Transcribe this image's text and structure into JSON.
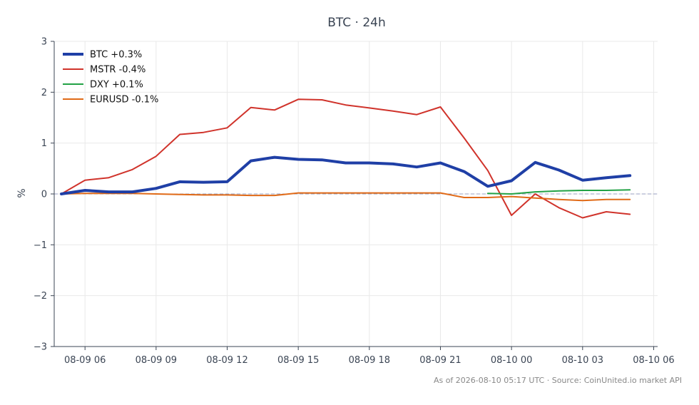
{
  "chart_data": {
    "type": "line",
    "title": "BTC · 24h",
    "xlabel": "",
    "ylabel": "%",
    "ylim": [
      -3,
      3
    ],
    "xlim": [
      "2026-08-09 04:42",
      "2026-08-10 06:10"
    ],
    "x_ticks": [
      {
        "t": "2026-08-09 06:00",
        "label": "08-09 06"
      },
      {
        "t": "2026-08-09 09:00",
        "label": "08-09 09"
      },
      {
        "t": "2026-08-09 12:00",
        "label": "08-09 12"
      },
      {
        "t": "2026-08-09 15:00",
        "label": "08-09 15"
      },
      {
        "t": "2026-08-09 18:00",
        "label": "08-09 18"
      },
      {
        "t": "2026-08-09 21:00",
        "label": "08-09 21"
      },
      {
        "t": "2026-08-10 00:00",
        "label": "08-10 00"
      },
      {
        "t": "2026-08-10 03:00",
        "label": "08-10 03"
      },
      {
        "t": "2026-08-10 06:00",
        "label": "08-10 06"
      }
    ],
    "y_ticks": [
      {
        "v": -3,
        "label": "−3"
      },
      {
        "v": -2,
        "label": "−2"
      },
      {
        "v": -1,
        "label": "−1"
      },
      {
        "v": 0,
        "label": "0"
      },
      {
        "v": 1,
        "label": "1"
      },
      {
        "v": 2,
        "label": "2"
      },
      {
        "v": 3,
        "label": "3"
      }
    ],
    "grid": true,
    "zero_line": true,
    "legend_position": "top-left",
    "series": [
      {
        "name": "BTC +0.3%",
        "color": "#1f3fa6",
        "emphasis": true,
        "points": [
          [
            "2026-08-09 05:00",
            0.0
          ],
          [
            "2026-08-09 06:00",
            0.07
          ],
          [
            "2026-08-09 07:00",
            0.04
          ],
          [
            "2026-08-09 08:00",
            0.04
          ],
          [
            "2026-08-09 09:00",
            0.11
          ],
          [
            "2026-08-09 10:00",
            0.24
          ],
          [
            "2026-08-09 11:00",
            0.23
          ],
          [
            "2026-08-09 12:00",
            0.24
          ],
          [
            "2026-08-09 13:00",
            0.65
          ],
          [
            "2026-08-09 14:00",
            0.72
          ],
          [
            "2026-08-09 15:00",
            0.68
          ],
          [
            "2026-08-09 16:00",
            0.67
          ],
          [
            "2026-08-09 17:00",
            0.61
          ],
          [
            "2026-08-09 18:00",
            0.61
          ],
          [
            "2026-08-09 19:00",
            0.59
          ],
          [
            "2026-08-09 20:00",
            0.53
          ],
          [
            "2026-08-09 21:00",
            0.61
          ],
          [
            "2026-08-09 22:00",
            0.44
          ],
          [
            "2026-08-09 23:00",
            0.15
          ],
          [
            "2026-08-10 00:00",
            0.26
          ],
          [
            "2026-08-10 01:00",
            0.62
          ],
          [
            "2026-08-10 02:00",
            0.47
          ],
          [
            "2026-08-10 03:00",
            0.27
          ],
          [
            "2026-08-10 04:00",
            0.32
          ],
          [
            "2026-08-10 05:00",
            0.36
          ]
        ]
      },
      {
        "name": "MSTR -0.4%",
        "color": "#d0332b",
        "emphasis": false,
        "points": [
          [
            "2026-08-09 05:00",
            0.0
          ],
          [
            "2026-08-09 06:00",
            0.27
          ],
          [
            "2026-08-09 07:00",
            0.32
          ],
          [
            "2026-08-09 08:00",
            0.48
          ],
          [
            "2026-08-09 09:00",
            0.74
          ],
          [
            "2026-08-09 10:00",
            1.17
          ],
          [
            "2026-08-09 11:00",
            1.21
          ],
          [
            "2026-08-09 12:00",
            1.3
          ],
          [
            "2026-08-09 13:00",
            1.7
          ],
          [
            "2026-08-09 14:00",
            1.65
          ],
          [
            "2026-08-09 15:00",
            1.86
          ],
          [
            "2026-08-09 16:00",
            1.85
          ],
          [
            "2026-08-09 17:00",
            1.75
          ],
          [
            "2026-08-09 18:00",
            1.69
          ],
          [
            "2026-08-09 19:00",
            1.63
          ],
          [
            "2026-08-09 20:00",
            1.56
          ],
          [
            "2026-08-09 21:00",
            1.71
          ],
          [
            "2026-08-09 22:00",
            1.1
          ],
          [
            "2026-08-09 23:00",
            0.46
          ],
          [
            "2026-08-10 00:00",
            -0.42
          ],
          [
            "2026-08-10 01:00",
            0.0
          ],
          [
            "2026-08-10 02:00",
            -0.27
          ],
          [
            "2026-08-10 03:00",
            -0.47
          ],
          [
            "2026-08-10 04:00",
            -0.35
          ],
          [
            "2026-08-10 05:00",
            -0.4
          ]
        ]
      },
      {
        "name": "DXY +0.1%",
        "color": "#22a245",
        "emphasis": false,
        "points": [
          [
            "2026-08-09 23:00",
            0.01
          ],
          [
            "2026-08-10 00:00",
            0.0
          ],
          [
            "2026-08-10 01:00",
            0.04
          ],
          [
            "2026-08-10 02:00",
            0.06
          ],
          [
            "2026-08-10 03:00",
            0.07
          ],
          [
            "2026-08-10 04:00",
            0.07
          ],
          [
            "2026-08-10 05:00",
            0.08
          ]
        ]
      },
      {
        "name": "EURUSD -0.1%",
        "color": "#e06a17",
        "emphasis": false,
        "points": [
          [
            "2026-08-09 05:00",
            0.0
          ],
          [
            "2026-08-09 06:00",
            0.01
          ],
          [
            "2026-08-09 07:00",
            0.01
          ],
          [
            "2026-08-09 08:00",
            0.01
          ],
          [
            "2026-08-09 09:00",
            0.0
          ],
          [
            "2026-08-09 10:00",
            -0.01
          ],
          [
            "2026-08-09 11:00",
            -0.02
          ],
          [
            "2026-08-09 12:00",
            -0.02
          ],
          [
            "2026-08-09 13:00",
            -0.03
          ],
          [
            "2026-08-09 14:00",
            -0.03
          ],
          [
            "2026-08-09 15:00",
            0.02
          ],
          [
            "2026-08-09 16:00",
            0.02
          ],
          [
            "2026-08-09 17:00",
            0.02
          ],
          [
            "2026-08-09 18:00",
            0.02
          ],
          [
            "2026-08-09 19:00",
            0.02
          ],
          [
            "2026-08-09 20:00",
            0.02
          ],
          [
            "2026-08-09 21:00",
            0.02
          ],
          [
            "2026-08-09 22:00",
            -0.07
          ],
          [
            "2026-08-09 23:00",
            -0.07
          ],
          [
            "2026-08-10 00:00",
            -0.05
          ],
          [
            "2026-08-10 01:00",
            -0.08
          ],
          [
            "2026-08-10 02:00",
            -0.11
          ],
          [
            "2026-08-10 03:00",
            -0.13
          ],
          [
            "2026-08-10 04:00",
            -0.11
          ],
          [
            "2026-08-10 05:00",
            -0.11
          ]
        ]
      }
    ]
  },
  "footer": {
    "text": "As of 2026-08-10 05:17 UTC · Source: CoinUnited.io market API"
  },
  "colors": {
    "axis": "#3b4554",
    "grid": "#e9e9e9",
    "zero_line": "#9aa0c0",
    "text": "#3b4554",
    "footer": "#888888"
  }
}
